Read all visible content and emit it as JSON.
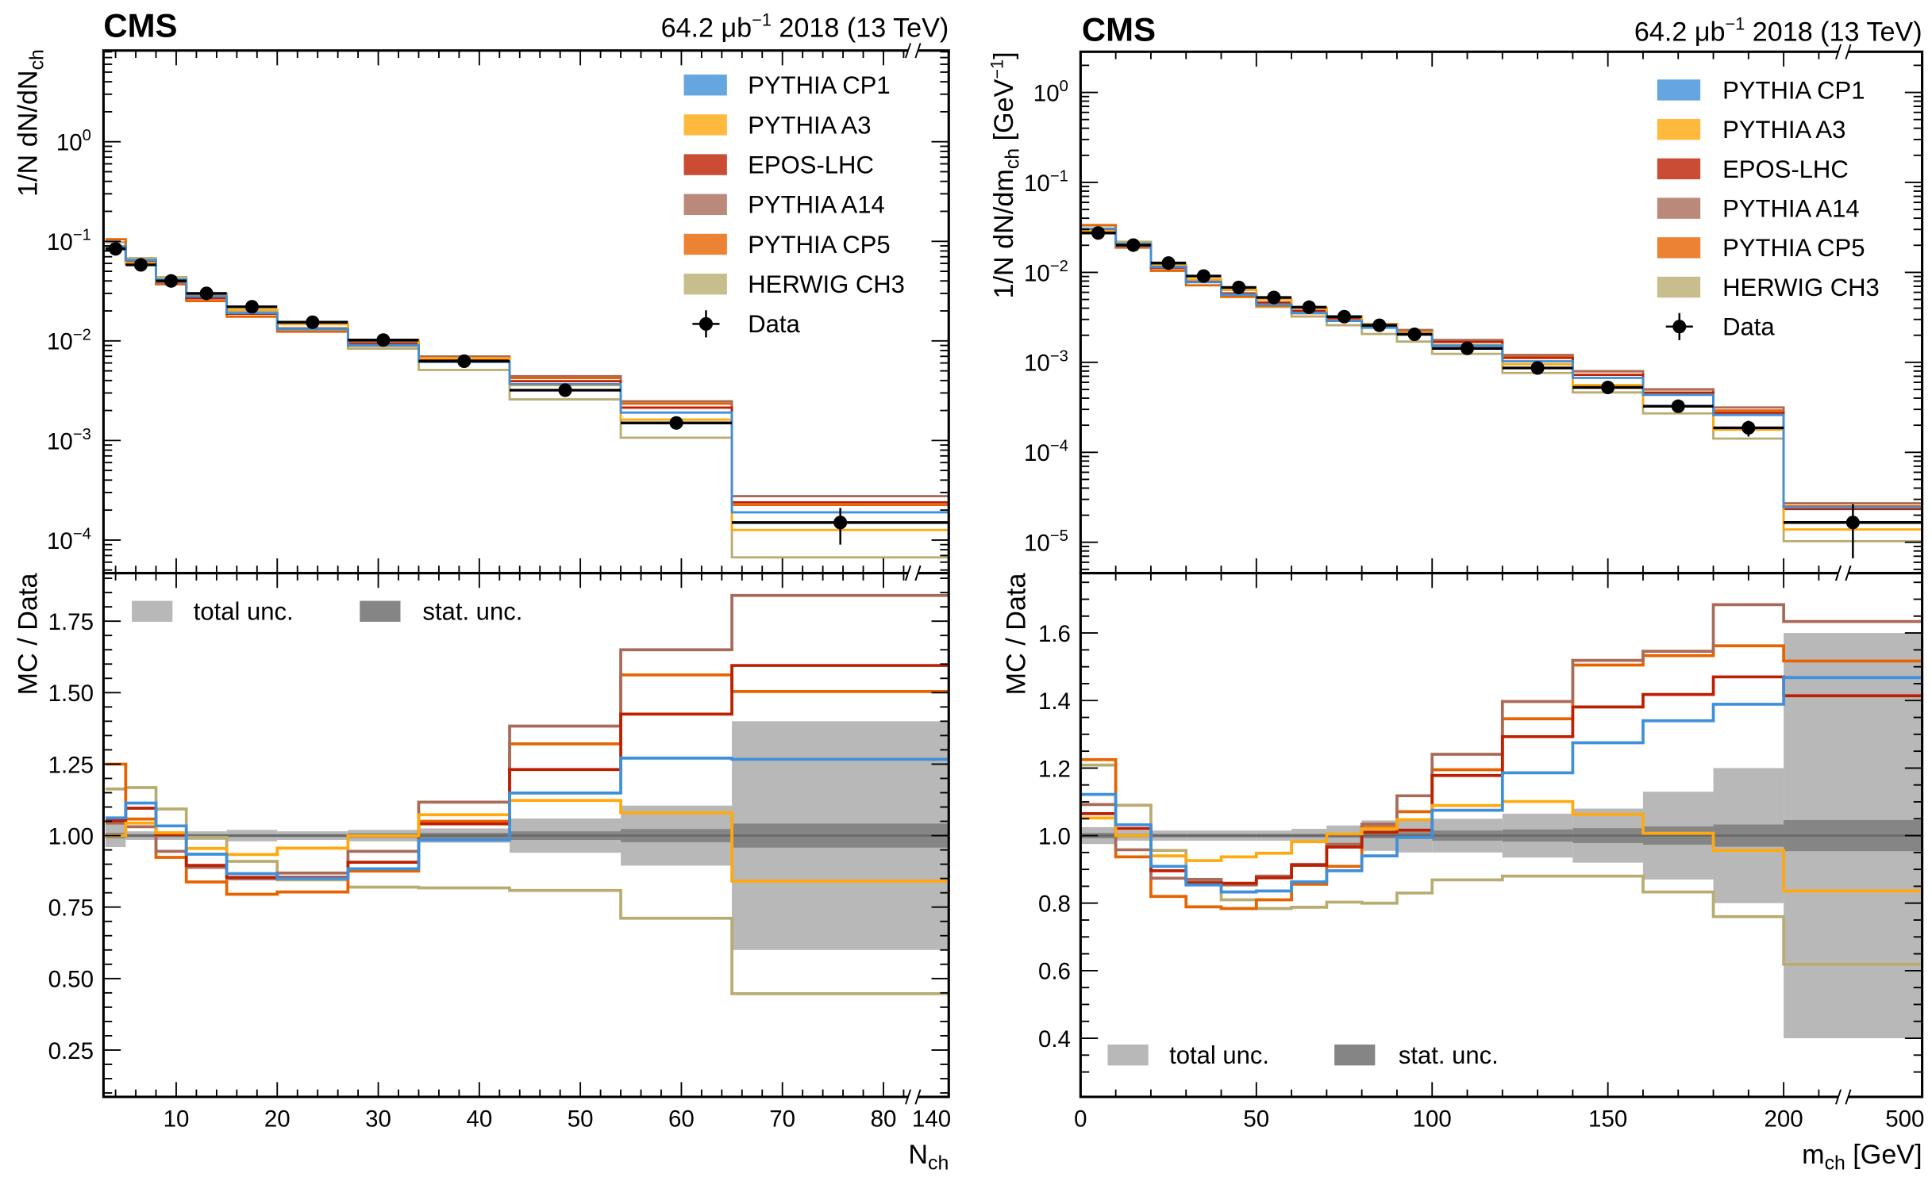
{
  "colors": {
    "PYTHIA CP1": "#3f90da",
    "PYTHIA A3": "#ffa90e",
    "EPOS-LHC": "#bd1f01",
    "PYTHIA A14": "#a96b59",
    "PYTHIA CP5": "#e76300",
    "HERWIG CH3": "#b9ac70",
    "Data": "#000000",
    "total unc.": "#b8b8b8",
    "stat. unc.": "#858585"
  },
  "chart_data": [
    {
      "type": "line",
      "experiment": "CMS",
      "lumi": {
        "value": "64.2 μb",
        "exp": "−1",
        "rest": " 2018 (13 TeV)"
      },
      "xlabel": {
        "main": "N",
        "sub": "ch"
      },
      "xscale": "linear with axis break",
      "xlim": [
        3,
        140
      ],
      "xticks": [
        {
          "v": 10,
          "label": "10"
        },
        {
          "v": 20,
          "label": "20"
        },
        {
          "v": 30,
          "label": "30"
        },
        {
          "v": 40,
          "label": "40"
        },
        {
          "v": 50,
          "label": "50"
        },
        {
          "v": 60,
          "label": "60"
        },
        {
          "v": 70,
          "label": "70"
        },
        {
          "v": 80,
          "label": "80"
        },
        {
          "v": 140,
          "label": "140"
        }
      ],
      "bin_edges": [
        3,
        5,
        8,
        11,
        15,
        20,
        27,
        34,
        43,
        54,
        65,
        140
      ],
      "top": {
        "ylabel": {
          "main": "1/N dN/dN",
          "sub": "ch",
          "tail": ""
        },
        "yscale": "log",
        "yticks": [
          {
            "v": 1,
            "exp": "0"
          },
          {
            "v": 0.1,
            "exp": "−1"
          },
          {
            "v": 0.01,
            "exp": "−2"
          },
          {
            "v": 0.001,
            "exp": "−3"
          },
          {
            "v": 0.0001,
            "exp": "−4"
          }
        ],
        "data": [
          0.084,
          0.058,
          0.04,
          0.03,
          0.022,
          0.0154,
          0.0102,
          0.00625,
          0.0032,
          0.0015,
          0.00015
        ]
      },
      "ratio": {
        "ylabel": "MC / Data",
        "ylim": [
          0.08,
          1.92
        ],
        "yticks": [
          {
            "v": 0.25,
            "label": "0.25"
          },
          {
            "v": 0.5,
            "label": "0.50"
          },
          {
            "v": 0.75,
            "label": "0.75"
          },
          {
            "v": 1.0,
            "label": "1.00"
          },
          {
            "v": 1.25,
            "label": "1.25"
          },
          {
            "v": 1.5,
            "label": "1.50"
          },
          {
            "v": 1.75,
            "label": "1.75"
          }
        ],
        "total_unc": [
          0.04,
          0.015,
          0.015,
          0.015,
          0.02,
          0.015,
          0.02,
          0.025,
          0.06,
          0.105,
          0.4
        ],
        "stat_unc": [
          0.01,
          0.005,
          0.005,
          0.005,
          0.005,
          0.005,
          0.008,
          0.01,
          0.015,
          0.023,
          0.042
        ],
        "series": [
          {
            "name": "PYTHIA CP1",
            "values": [
              1.062,
              1.114,
              1.034,
              0.935,
              0.867,
              0.85,
              0.884,
              0.985,
              1.149,
              1.271,
              1.267
            ]
          },
          {
            "name": "PYTHIA A3",
            "values": [
              1.0,
              1.044,
              1.01,
              0.955,
              0.934,
              0.956,
              0.999,
              1.073,
              1.123,
              1.08,
              0.841
            ]
          },
          {
            "name": "EPOS-LHC",
            "values": [
              1.052,
              1.096,
              1.004,
              0.896,
              0.854,
              0.854,
              0.907,
              1.041,
              1.231,
              1.425,
              1.595
            ]
          },
          {
            "name": "PYTHIA A14",
            "values": [
              1.044,
              1.031,
              0.945,
              0.889,
              0.849,
              0.869,
              0.945,
              1.117,
              1.383,
              1.65,
              1.84
            ]
          },
          {
            "name": "PYTHIA CP5",
            "values": [
              1.25,
              1.058,
              0.924,
              0.838,
              0.795,
              0.803,
              0.876,
              1.05,
              1.321,
              1.562,
              1.504
            ]
          },
          {
            "name": "HERWIG CH3",
            "values": [
              1.163,
              1.168,
              1.093,
              0.994,
              0.91,
              0.845,
              0.82,
              0.817,
              0.808,
              0.711,
              0.447
            ]
          }
        ]
      },
      "legend": {
        "top_placement": "top-right",
        "ratio_placement": "top-left",
        "entries": [
          "PYTHIA CP1",
          "PYTHIA A3",
          "EPOS-LHC",
          "PYTHIA A14",
          "PYTHIA CP5",
          "HERWIG CH3",
          "Data"
        ],
        "ratio_entries": [
          "total unc.",
          "stat. unc."
        ]
      }
    },
    {
      "type": "line",
      "experiment": "CMS",
      "lumi": {
        "value": "64.2 μb",
        "exp": "−1",
        "rest": " 2018 (13 TeV)"
      },
      "xlabel": {
        "main": "m",
        "sub": "ch",
        "tail": " [GeV]"
      },
      "xscale": "linear with axis break",
      "xlim": [
        0,
        500
      ],
      "xticks": [
        {
          "v": 0,
          "label": "0"
        },
        {
          "v": 50,
          "label": "50"
        },
        {
          "v": 100,
          "label": "100"
        },
        {
          "v": 150,
          "label": "150"
        },
        {
          "v": 200,
          "label": "200"
        },
        {
          "v": 500,
          "label": "500"
        }
      ],
      "bin_edges": [
        0,
        10,
        20,
        30,
        40,
        50,
        60,
        70,
        80,
        90,
        100,
        120,
        140,
        160,
        180,
        200,
        500
      ],
      "top": {
        "ylabel": {
          "main": "1/N dN/dm",
          "sub": "ch",
          "tail": " [GeV",
          "tail_exp": "−1",
          "tail_end": "]"
        },
        "yscale": "log",
        "yticks": [
          {
            "v": 1,
            "exp": "0"
          },
          {
            "v": 0.1,
            "exp": "−1"
          },
          {
            "v": 0.01,
            "exp": "−2"
          },
          {
            "v": 0.001,
            "exp": "−3"
          },
          {
            "v": 0.0001,
            "exp": "−4"
          },
          {
            "v": 1e-05,
            "exp": "−5"
          }
        ],
        "data": [
          0.0274,
          0.0201,
          0.0127,
          0.0091,
          0.0068,
          0.00526,
          0.0041,
          0.00322,
          0.00258,
          0.00205,
          0.00143,
          0.000866,
          0.000526,
          0.000325,
          0.000187,
          1.66e-05
        ]
      },
      "ratio": {
        "ylabel": "MC / Data",
        "ylim": [
          0.3,
          1.78
        ],
        "yticks": [
          {
            "v": 0.4,
            "label": "0.4"
          },
          {
            "v": 0.6,
            "label": "0.6"
          },
          {
            "v": 0.8,
            "label": "0.8"
          },
          {
            "v": 1.0,
            "label": "1.0"
          },
          {
            "v": 1.2,
            "label": "1.2"
          },
          {
            "v": 1.4,
            "label": "1.4"
          },
          {
            "v": 1.6,
            "label": "1.6"
          }
        ],
        "total_unc": [
          0.025,
          0.015,
          0.015,
          0.015,
          0.015,
          0.015,
          0.02,
          0.03,
          0.045,
          0.05,
          0.05,
          0.065,
          0.08,
          0.13,
          0.2,
          0.6
        ],
        "stat_unc": [
          0.008,
          0.005,
          0.005,
          0.005,
          0.005,
          0.005,
          0.005,
          0.006,
          0.008,
          0.01,
          0.015,
          0.018,
          0.022,
          0.027,
          0.033,
          0.046
        ],
        "series": [
          {
            "name": "PYTHIA CP1",
            "values": [
              1.122,
              1.032,
              0.909,
              0.854,
              0.833,
              0.836,
              0.863,
              0.896,
              0.94,
              0.995,
              1.075,
              1.186,
              1.275,
              1.34,
              1.389,
              1.468
            ]
          },
          {
            "name": "PYTHIA A3",
            "values": [
              1.052,
              1.0,
              0.94,
              0.926,
              0.937,
              0.948,
              0.982,
              1.005,
              1.02,
              1.047,
              1.089,
              1.101,
              1.063,
              1.007,
              0.956,
              0.836
            ]
          },
          {
            "name": "EPOS-LHC",
            "values": [
              1.065,
              1.021,
              0.896,
              0.86,
              0.859,
              0.875,
              0.912,
              0.966,
              1.01,
              1.016,
              1.178,
              1.293,
              1.381,
              1.418,
              1.47,
              1.414
            ]
          },
          {
            "name": "PYTHIA A14",
            "values": [
              1.092,
              0.958,
              0.874,
              0.87,
              0.854,
              0.88,
              0.915,
              0.974,
              1.034,
              1.118,
              1.241,
              1.397,
              1.519,
              1.546,
              1.684,
              1.634
            ]
          },
          {
            "name": "PYTHIA CP5",
            "values": [
              1.225,
              0.937,
              0.82,
              0.789,
              0.784,
              0.81,
              0.856,
              0.909,
              1.024,
              1.071,
              1.195,
              1.346,
              1.505,
              1.533,
              1.562,
              1.517
            ]
          },
          {
            "name": "HERWIG CH3",
            "values": [
              1.209,
              1.09,
              0.956,
              0.868,
              0.81,
              0.784,
              0.788,
              0.803,
              0.8,
              0.83,
              0.869,
              0.88,
              0.88,
              0.833,
              0.76,
              0.619
            ]
          }
        ]
      },
      "legend": {
        "top_placement": "top-right",
        "ratio_placement": "bottom-left",
        "entries": [
          "PYTHIA CP1",
          "PYTHIA A3",
          "EPOS-LHC",
          "PYTHIA A14",
          "PYTHIA CP5",
          "HERWIG CH3",
          "Data"
        ],
        "ratio_entries": [
          "total unc.",
          "stat. unc."
        ]
      }
    }
  ]
}
